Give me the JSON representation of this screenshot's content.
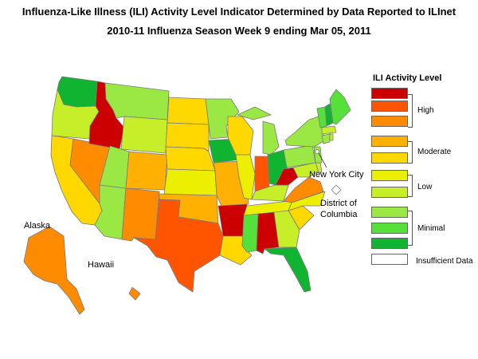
{
  "title_line1": "Influenza-Like Illness (ILI) Activity Level Indicator Determined by Data Reported to ILInet",
  "title_line2": "2010-11  Influenza Season Week  9 ending Mar 05, 2011",
  "legend": {
    "title": "ILI Activity Level",
    "levels": [
      {
        "level": 10,
        "color": "#cc0000"
      },
      {
        "level": 9,
        "color": "#ff5500"
      },
      {
        "level": 8,
        "color": "#ff8c00"
      },
      {
        "level": 7,
        "color": "#ffb000"
      },
      {
        "level": 6,
        "color": "#ffd800"
      },
      {
        "level": 5,
        "color": "#ecf000"
      },
      {
        "level": 4,
        "color": "#c6ef2a"
      },
      {
        "level": 3,
        "color": "#9be845"
      },
      {
        "level": 2,
        "color": "#55e03a"
      },
      {
        "level": 1,
        "color": "#10b430"
      },
      {
        "level": 0,
        "color": "#ffffff"
      }
    ],
    "groups": {
      "high": "High",
      "moderate": "Moderate",
      "low": "Low",
      "minimal": "Minimal",
      "insufficient": "Insufficient Data"
    }
  },
  "map_labels": {
    "alaska": "Alaska",
    "hawaii": "Hawaii",
    "nyc": "New York City",
    "dc_line1": "District of",
    "dc_line2": "Columbia"
  },
  "states": {
    "WA": 1,
    "OR": 4,
    "CA": 6,
    "NV": 8,
    "ID": 10,
    "MT": 3,
    "WY": 4,
    "UT": 3,
    "AZ": 3,
    "CO": 7,
    "NM": 8,
    "ND": 6,
    "SD": 6,
    "NE": 6,
    "KS": 5,
    "OK": 7,
    "TX": 9,
    "MN": 3,
    "IA": 1,
    "MO": 7,
    "AR": 10,
    "LA": 6,
    "WI": 6,
    "IL": 5,
    "MI": 3,
    "IN": 9,
    "OH": 1,
    "KY": 4,
    "TN": 5,
    "MS": 2,
    "AL": 10,
    "GA": 4,
    "FL": 1,
    "SC": 6,
    "NC": 5,
    "VA": 8,
    "WV": 10,
    "MD": 4,
    "DE": 4,
    "NJ": 3,
    "PA": 3,
    "NY": 3,
    "CT": 3,
    "RI": 4,
    "MA": 4,
    "VT": 2,
    "NH": 1,
    "ME": 2,
    "AK": 8,
    "HI": 8,
    "NYC": 0,
    "DC": 0
  }
}
